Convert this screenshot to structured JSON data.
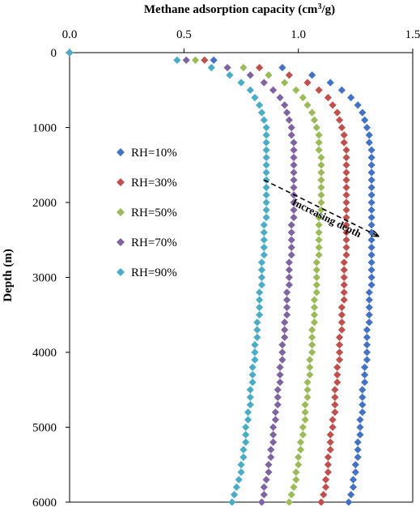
{
  "chart_data": {
    "type": "scatter",
    "title": "",
    "xlabel_main": "Methane adsorption capacity (cm",
    "xlabel_sup": "3",
    "xlabel_tail": "/g)",
    "ylabel": "Depth (m)",
    "x_axis_position": "top",
    "y_axis_reversed": true,
    "xlim": [
      0,
      1.5
    ],
    "ylim": [
      0,
      6000
    ],
    "x_ticks": [
      0,
      0.5,
      1.0,
      1.5
    ],
    "x_tick_labels": [
      "0.0",
      "0.5",
      "1.0",
      "1.5"
    ],
    "y_ticks": [
      0,
      1000,
      2000,
      3000,
      4000,
      5000,
      6000
    ],
    "y_tick_labels": [
      "0",
      "1000",
      "2000",
      "3000",
      "4000",
      "5000",
      "6000"
    ],
    "grid": false,
    "legend_position": "left",
    "marker": "diamond",
    "depth": [
      0,
      100,
      200,
      300,
      400,
      500,
      600,
      700,
      800,
      900,
      1000,
      1100,
      1200,
      1300,
      1400,
      1500,
      1600,
      1700,
      1800,
      1900,
      2000,
      2100,
      2200,
      2300,
      2400,
      2500,
      2600,
      2700,
      2800,
      2900,
      3000,
      3100,
      3200,
      3300,
      3400,
      3500,
      3600,
      3700,
      3800,
      3900,
      4000,
      4100,
      4200,
      4300,
      4400,
      4500,
      4600,
      4700,
      4800,
      4900,
      5000,
      5100,
      5200,
      5300,
      5400,
      5500,
      5600,
      5700,
      5800,
      5900,
      6000
    ],
    "series": [
      {
        "name": "RH=10%",
        "color": "#4472C4",
        "values": [
          0.0,
          0.63,
          0.93,
          1.06,
          1.14,
          1.19,
          1.23,
          1.26,
          1.28,
          1.29,
          1.3,
          1.31,
          1.31,
          1.32,
          1.32,
          1.32,
          1.32,
          1.32,
          1.32,
          1.32,
          1.32,
          1.32,
          1.32,
          1.32,
          1.32,
          1.32,
          1.32,
          1.32,
          1.32,
          1.32,
          1.32,
          1.32,
          1.31,
          1.31,
          1.31,
          1.31,
          1.31,
          1.3,
          1.3,
          1.3,
          1.3,
          1.3,
          1.29,
          1.29,
          1.29,
          1.28,
          1.28,
          1.28,
          1.28,
          1.27,
          1.27,
          1.27,
          1.26,
          1.26,
          1.26,
          1.25,
          1.25,
          1.24,
          1.24,
          1.23,
          1.22
        ]
      },
      {
        "name": "RH=30%",
        "color": "#C0504D",
        "values": [
          0.0,
          0.59,
          0.83,
          0.96,
          1.04,
          1.09,
          1.13,
          1.15,
          1.17,
          1.18,
          1.19,
          1.2,
          1.2,
          1.21,
          1.21,
          1.21,
          1.21,
          1.21,
          1.21,
          1.21,
          1.21,
          1.21,
          1.21,
          1.21,
          1.21,
          1.21,
          1.21,
          1.21,
          1.2,
          1.2,
          1.2,
          1.2,
          1.2,
          1.2,
          1.19,
          1.19,
          1.19,
          1.19,
          1.18,
          1.18,
          1.18,
          1.18,
          1.17,
          1.17,
          1.17,
          1.16,
          1.16,
          1.16,
          1.16,
          1.15,
          1.15,
          1.14,
          1.14,
          1.14,
          1.13,
          1.13,
          1.13,
          1.12,
          1.12,
          1.11,
          1.1
        ]
      },
      {
        "name": "RH=50%",
        "color": "#9BBB59",
        "values": [
          0.0,
          0.55,
          0.76,
          0.87,
          0.94,
          0.99,
          1.02,
          1.04,
          1.06,
          1.07,
          1.08,
          1.09,
          1.09,
          1.09,
          1.1,
          1.1,
          1.1,
          1.1,
          1.1,
          1.1,
          1.1,
          1.1,
          1.09,
          1.09,
          1.09,
          1.09,
          1.09,
          1.09,
          1.08,
          1.08,
          1.08,
          1.08,
          1.08,
          1.07,
          1.07,
          1.07,
          1.07,
          1.06,
          1.06,
          1.06,
          1.06,
          1.05,
          1.05,
          1.05,
          1.04,
          1.04,
          1.04,
          1.03,
          1.03,
          1.03,
          1.02,
          1.02,
          1.01,
          1.01,
          1.0,
          1.0,
          0.99,
          0.99,
          0.98,
          0.97,
          0.96
        ]
      },
      {
        "name": "RH=70%",
        "color": "#8064A2",
        "values": [
          0.0,
          0.51,
          0.69,
          0.79,
          0.85,
          0.89,
          0.92,
          0.94,
          0.95,
          0.96,
          0.97,
          0.97,
          0.98,
          0.98,
          0.98,
          0.98,
          0.98,
          0.98,
          0.98,
          0.98,
          0.98,
          0.98,
          0.98,
          0.97,
          0.97,
          0.97,
          0.97,
          0.97,
          0.96,
          0.96,
          0.96,
          0.96,
          0.95,
          0.95,
          0.95,
          0.95,
          0.94,
          0.94,
          0.94,
          0.93,
          0.93,
          0.93,
          0.92,
          0.92,
          0.92,
          0.91,
          0.91,
          0.91,
          0.9,
          0.9,
          0.89,
          0.89,
          0.89,
          0.88,
          0.88,
          0.87,
          0.87,
          0.86,
          0.85,
          0.85,
          0.84
        ]
      },
      {
        "name": "RH=90%",
        "color": "#4BACC6",
        "values": [
          0.0,
          0.47,
          0.62,
          0.7,
          0.75,
          0.79,
          0.81,
          0.83,
          0.84,
          0.85,
          0.86,
          0.86,
          0.86,
          0.86,
          0.86,
          0.86,
          0.86,
          0.86,
          0.86,
          0.86,
          0.86,
          0.86,
          0.86,
          0.85,
          0.85,
          0.85,
          0.85,
          0.85,
          0.84,
          0.84,
          0.84,
          0.84,
          0.83,
          0.83,
          0.83,
          0.83,
          0.82,
          0.82,
          0.82,
          0.81,
          0.81,
          0.81,
          0.8,
          0.8,
          0.8,
          0.79,
          0.79,
          0.79,
          0.78,
          0.78,
          0.77,
          0.77,
          0.77,
          0.76,
          0.76,
          0.75,
          0.75,
          0.74,
          0.73,
          0.72,
          0.71
        ]
      }
    ],
    "annotation": {
      "text": "Increasing depth",
      "from": {
        "x": 0.85,
        "y": 1700
      },
      "to": {
        "x": 1.35,
        "y": 2450
      }
    }
  }
}
